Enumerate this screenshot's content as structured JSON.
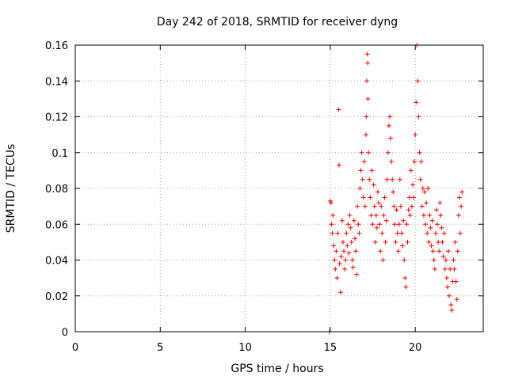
{
  "chart_data": {
    "type": "scatter",
    "title": "Day 242 of 2018, SRMTID for receiver dyng",
    "xlabel": "GPS time / hours",
    "ylabel": "SRMTID / TECUs",
    "xlim": [
      0,
      24
    ],
    "ylim": [
      0,
      0.16
    ],
    "xticks": [
      "0",
      "5",
      "10",
      "15",
      "20"
    ],
    "yticks": [
      "0",
      "0.02",
      "0.04",
      "0.06",
      "0.08",
      "0.1",
      "0.12",
      "0.14",
      "0.16"
    ],
    "grid": true,
    "marker": "plus",
    "color": "#ff0000",
    "series": [
      {
        "name": "dyng",
        "points": [
          [
            14.95,
            0.0
          ],
          [
            15.0,
            0.073
          ],
          [
            15.05,
            0.072
          ],
          [
            15.08,
            0.06
          ],
          [
            15.12,
            0.055
          ],
          [
            15.15,
            0.065
          ],
          [
            15.2,
            0.048
          ],
          [
            15.25,
            0.04
          ],
          [
            15.3,
            0.035
          ],
          [
            15.35,
            0.045
          ],
          [
            15.4,
            0.03
          ],
          [
            15.45,
            0.055
          ],
          [
            15.5,
            0.124
          ],
          [
            15.52,
            0.093
          ],
          [
            15.55,
            0.038
          ],
          [
            15.6,
            0.022
          ],
          [
            15.65,
            0.042
          ],
          [
            15.7,
            0.062
          ],
          [
            15.75,
            0.05
          ],
          [
            15.8,
            0.045
          ],
          [
            15.85,
            0.035
          ],
          [
            15.9,
            0.04
          ],
          [
            15.95,
            0.055
          ],
          [
            16.0,
            0.048
          ],
          [
            16.05,
            0.06
          ],
          [
            16.1,
            0.044
          ],
          [
            16.15,
            0.065
          ],
          [
            16.2,
            0.058
          ],
          [
            16.25,
            0.05
          ],
          [
            16.3,
            0.04
          ],
          [
            16.35,
            0.036
          ],
          [
            16.4,
            0.062
          ],
          [
            16.45,
            0.052
          ],
          [
            16.5,
            0.045
          ],
          [
            16.55,
            0.032
          ],
          [
            16.6,
            0.07
          ],
          [
            16.65,
            0.06
          ],
          [
            16.7,
            0.055
          ],
          [
            16.75,
            0.08
          ],
          [
            16.8,
            0.09
          ],
          [
            16.85,
            0.1
          ],
          [
            16.9,
            0.085
          ],
          [
            16.95,
            0.075
          ],
          [
            17.0,
            0.095
          ],
          [
            17.05,
            0.07
          ],
          [
            17.1,
            0.11
          ],
          [
            17.12,
            0.12
          ],
          [
            17.15,
            0.14
          ],
          [
            17.18,
            0.155
          ],
          [
            17.2,
            0.15
          ],
          [
            17.22,
            0.13
          ],
          [
            17.25,
            0.1
          ],
          [
            17.3,
            0.085
          ],
          [
            17.35,
            0.075
          ],
          [
            17.4,
            0.065
          ],
          [
            17.45,
            0.09
          ],
          [
            17.5,
            0.06
          ],
          [
            17.55,
            0.082
          ],
          [
            17.6,
            0.07
          ],
          [
            17.65,
            0.05
          ],
          [
            17.7,
            0.065
          ],
          [
            17.75,
            0.058
          ],
          [
            17.8,
            0.078
          ],
          [
            17.85,
            0.072
          ],
          [
            17.9,
            0.06
          ],
          [
            17.95,
            0.045
          ],
          [
            18.0,
            0.07
          ],
          [
            18.05,
            0.055
          ],
          [
            18.1,
            0.04
          ],
          [
            18.15,
            0.065
          ],
          [
            18.2,
            0.075
          ],
          [
            18.25,
            0.05
          ],
          [
            18.3,
            0.062
          ],
          [
            18.35,
            0.085
          ],
          [
            18.4,
            0.1
          ],
          [
            18.45,
            0.115
          ],
          [
            18.5,
            0.12
          ],
          [
            18.55,
            0.108
          ],
          [
            18.6,
            0.095
          ],
          [
            18.65,
            0.085
          ],
          [
            18.7,
            0.078
          ],
          [
            18.75,
            0.07
          ],
          [
            18.8,
            0.06
          ],
          [
            18.85,
            0.05
          ],
          [
            18.9,
            0.068
          ],
          [
            18.95,
            0.055
          ],
          [
            19.0,
            0.045
          ],
          [
            19.05,
            0.06
          ],
          [
            19.1,
            0.085
          ],
          [
            19.15,
            0.07
          ],
          [
            19.2,
            0.055
          ],
          [
            19.25,
            0.048
          ],
          [
            19.3,
            0.062
          ],
          [
            19.35,
            0.04
          ],
          [
            19.4,
            0.03
          ],
          [
            19.45,
            0.025
          ],
          [
            19.5,
            0.06
          ],
          [
            19.55,
            0.05
          ],
          [
            19.6,
            0.068
          ],
          [
            19.65,
            0.075
          ],
          [
            19.7,
            0.065
          ],
          [
            19.75,
            0.09
          ],
          [
            19.8,
            0.07
          ],
          [
            19.85,
            0.082
          ],
          [
            19.9,
            0.075
          ],
          [
            19.95,
            0.095
          ],
          [
            20.0,
            0.11
          ],
          [
            20.05,
            0.128
          ],
          [
            20.1,
            0.16
          ],
          [
            20.15,
            0.14
          ],
          [
            20.2,
            0.12
          ],
          [
            20.25,
            0.1
          ],
          [
            20.3,
            0.085
          ],
          [
            20.35,
            0.095
          ],
          [
            20.4,
            0.07
          ],
          [
            20.45,
            0.08
          ],
          [
            20.5,
            0.065
          ],
          [
            20.55,
            0.078
          ],
          [
            20.6,
            0.06
          ],
          [
            20.65,
            0.072
          ],
          [
            20.7,
            0.055
          ],
          [
            20.75,
            0.08
          ],
          [
            20.8,
            0.05
          ],
          [
            20.85,
            0.065
          ],
          [
            20.9,
            0.058
          ],
          [
            20.95,
            0.048
          ],
          [
            21.0,
            0.062
          ],
          [
            21.05,
            0.045
          ],
          [
            21.1,
            0.04
          ],
          [
            21.15,
            0.035
          ],
          [
            21.2,
            0.055
          ],
          [
            21.25,
            0.068
          ],
          [
            21.3,
            0.06
          ],
          [
            21.35,
            0.05
          ],
          [
            21.4,
            0.045
          ],
          [
            21.45,
            0.072
          ],
          [
            21.5,
            0.065
          ],
          [
            21.55,
            0.058
          ],
          [
            21.6,
            0.05
          ],
          [
            21.65,
            0.042
          ],
          [
            21.7,
            0.055
          ],
          [
            21.75,
            0.035
          ],
          [
            21.8,
            0.04
          ],
          [
            21.85,
            0.03
          ],
          [
            21.9,
            0.025
          ],
          [
            21.95,
            0.045
          ],
          [
            22.0,
            0.02
          ],
          [
            22.05,
            0.035
          ],
          [
            22.1,
            0.015
          ],
          [
            22.15,
            0.012
          ],
          [
            22.2,
            0.028
          ],
          [
            22.25,
            0.04
          ],
          [
            22.3,
            0.035
          ],
          [
            22.35,
            0.05
          ],
          [
            22.4,
            0.028
          ],
          [
            22.45,
            0.018
          ],
          [
            22.5,
            0.045
          ],
          [
            22.55,
            0.065
          ],
          [
            22.6,
            0.075
          ],
          [
            22.65,
            0.055
          ],
          [
            22.7,
            0.07
          ],
          [
            22.75,
            0.078
          ]
        ]
      }
    ]
  }
}
